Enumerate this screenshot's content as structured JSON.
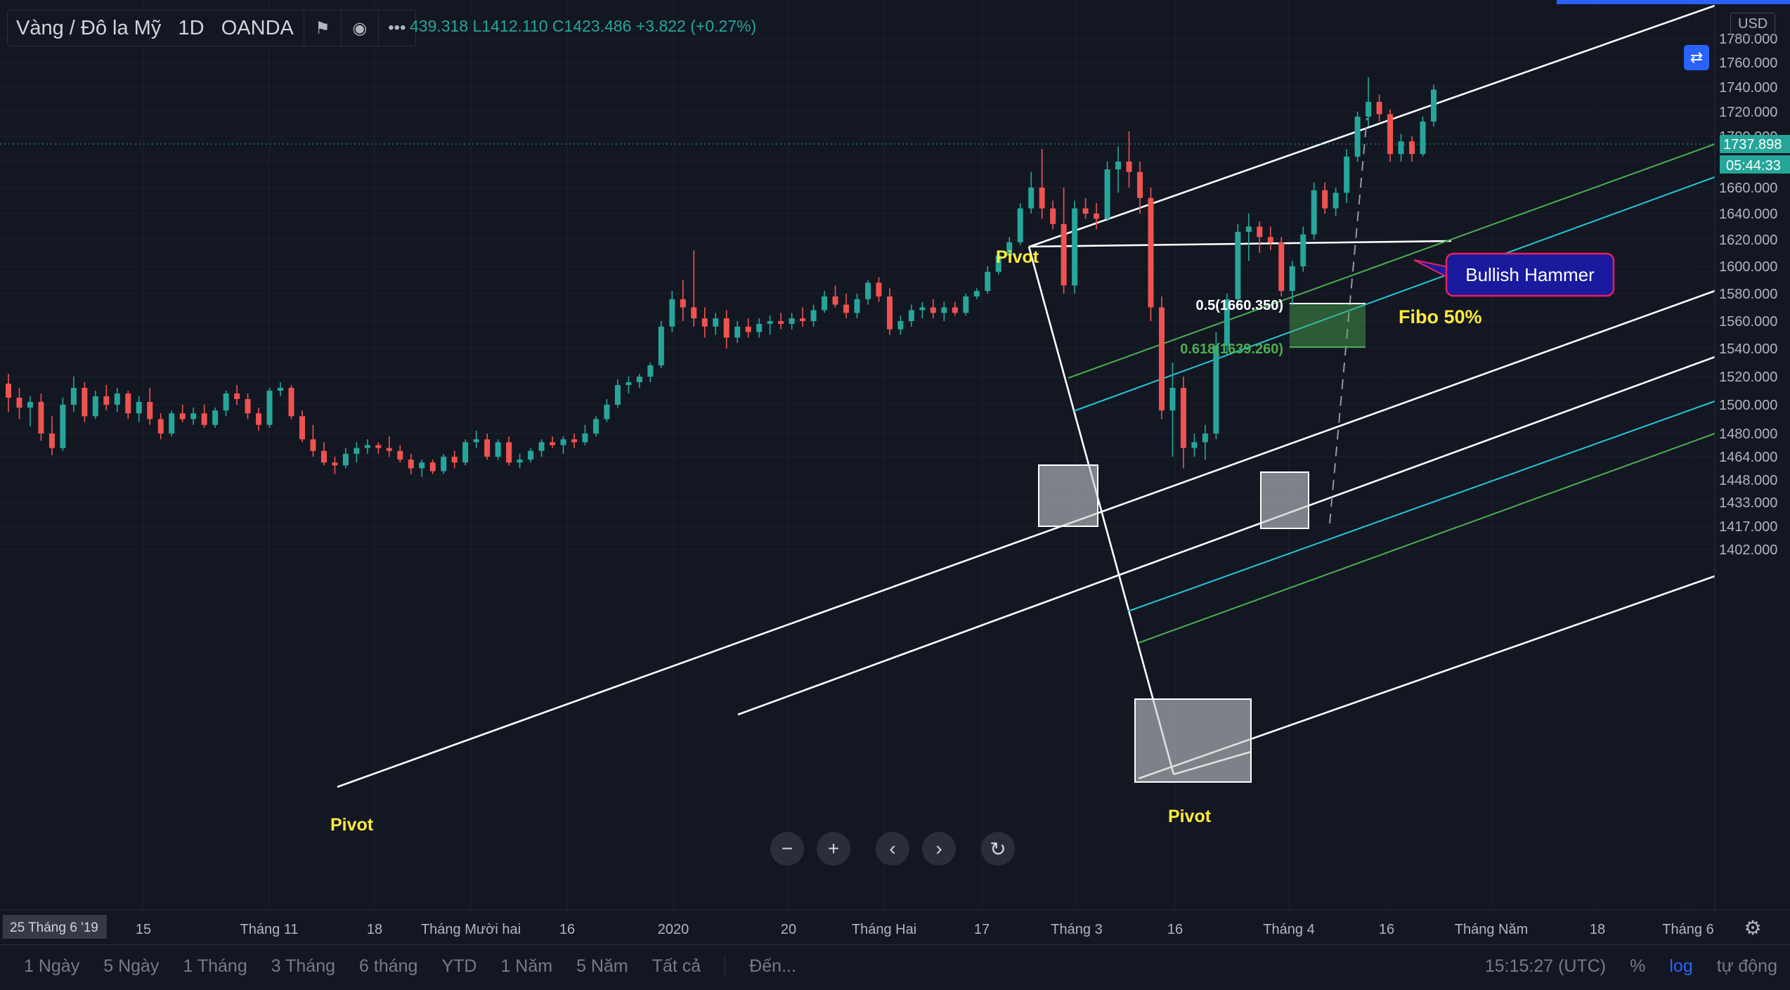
{
  "header": {
    "symbol": "Vàng / Đô la Mỹ",
    "interval": "1D",
    "broker": "OANDA",
    "ohlc_text": "439.318  L1412.110  C1423.486  +3.822 (+0.27%)"
  },
  "colors": {
    "bg": "#131722",
    "up": "#26a69a",
    "down": "#ef5350",
    "accent": "#2962ff",
    "channel": "#ffffff",
    "green_line": "#4caf50",
    "cyan_line": "#26c6da"
  },
  "price_axis": {
    "currency": "USD",
    "current_price": "1737.898",
    "countdown": "05:44:33",
    "labels": [
      "1780.000",
      "1760.000",
      "1740.000",
      "1720.000",
      "1700.000",
      "1680.000",
      "1660.000",
      "1640.000",
      "1620.000",
      "1600.000",
      "1580.000",
      "1560.000",
      "1540.000",
      "1520.000",
      "1500.000",
      "1480.000",
      "1464.000",
      "1448.000",
      "1433.000",
      "1417.000",
      "1402.000"
    ]
  },
  "time_axis": {
    "first_label": "25 Tháng 6 '19",
    "labels": [
      "15",
      "Tháng 11",
      "18",
      "Tháng Mười hai",
      "16",
      "2020",
      "20",
      "Tháng Hai",
      "17",
      "Tháng 3",
      "16",
      "Tháng 4",
      "16",
      "Tháng Năm",
      "18",
      "Tháng 6"
    ]
  },
  "annotations": {
    "pivot_label": "Pivot",
    "fib_05": "0.5(1660.350)",
    "fib_0618": "0.618(1639.260)",
    "hammer": "Bullish Hammer",
    "fibo_text": "Fibo 50%"
  },
  "bottom": {
    "ranges": [
      "1 Ngày",
      "5 Ngày",
      "1 Tháng",
      "3 Tháng",
      "6 tháng",
      "YTD",
      "1 Năm",
      "5 Năm",
      "Tất cả"
    ],
    "goto": "Đến...",
    "clock": "15:15:27 (UTC)",
    "percent": "%",
    "log": "log",
    "auto": "tự động"
  },
  "chart_data": {
    "type": "candlestick",
    "ylim": [
      1395,
      1795
    ],
    "candles_ohlc": [
      [
        1515,
        1522,
        1495,
        1505
      ],
      [
        1505,
        1512,
        1490,
        1498
      ],
      [
        1498,
        1506,
        1485,
        1502
      ],
      [
        1502,
        1508,
        1475,
        1480
      ],
      [
        1480,
        1492,
        1465,
        1470
      ],
      [
        1470,
        1505,
        1468,
        1500
      ],
      [
        1500,
        1520,
        1495,
        1512
      ],
      [
        1512,
        1516,
        1488,
        1492
      ],
      [
        1492,
        1510,
        1490,
        1506
      ],
      [
        1506,
        1514,
        1496,
        1500
      ],
      [
        1500,
        1512,
        1495,
        1508
      ],
      [
        1508,
        1510,
        1490,
        1494
      ],
      [
        1494,
        1506,
        1488,
        1502
      ],
      [
        1502,
        1512,
        1486,
        1490
      ],
      [
        1490,
        1494,
        1476,
        1480
      ],
      [
        1480,
        1496,
        1478,
        1494
      ],
      [
        1494,
        1500,
        1488,
        1490
      ],
      [
        1490,
        1498,
        1486,
        1494
      ],
      [
        1494,
        1500,
        1484,
        1486
      ],
      [
        1486,
        1498,
        1484,
        1496
      ],
      [
        1496,
        1510,
        1492,
        1508
      ],
      [
        1508,
        1514,
        1500,
        1504
      ],
      [
        1504,
        1508,
        1490,
        1494
      ],
      [
        1494,
        1498,
        1482,
        1486
      ],
      [
        1486,
        1512,
        1484,
        1510
      ],
      [
        1510,
        1516,
        1506,
        1512
      ],
      [
        1512,
        1514,
        1490,
        1492
      ],
      [
        1492,
        1496,
        1474,
        1476
      ],
      [
        1476,
        1486,
        1464,
        1468
      ],
      [
        1468,
        1474,
        1458,
        1460
      ],
      [
        1460,
        1464,
        1452,
        1458
      ],
      [
        1458,
        1470,
        1456,
        1466
      ],
      [
        1466,
        1474,
        1460,
        1470
      ],
      [
        1470,
        1476,
        1466,
        1472
      ],
      [
        1472,
        1474,
        1466,
        1470
      ],
      [
        1470,
        1478,
        1464,
        1468
      ],
      [
        1468,
        1472,
        1460,
        1462
      ],
      [
        1462,
        1466,
        1452,
        1456
      ],
      [
        1456,
        1462,
        1450,
        1460
      ],
      [
        1460,
        1462,
        1452,
        1454
      ],
      [
        1454,
        1466,
        1452,
        1464
      ],
      [
        1464,
        1468,
        1456,
        1460
      ],
      [
        1460,
        1476,
        1458,
        1474
      ],
      [
        1474,
        1482,
        1470,
        1476
      ],
      [
        1476,
        1480,
        1462,
        1464
      ],
      [
        1464,
        1476,
        1462,
        1474
      ],
      [
        1474,
        1478,
        1458,
        1460
      ],
      [
        1460,
        1466,
        1456,
        1462
      ],
      [
        1462,
        1470,
        1460,
        1468
      ],
      [
        1468,
        1476,
        1464,
        1474
      ],
      [
        1474,
        1478,
        1470,
        1472
      ],
      [
        1472,
        1478,
        1466,
        1476
      ],
      [
        1476,
        1480,
        1470,
        1474
      ],
      [
        1474,
        1486,
        1472,
        1480
      ],
      [
        1480,
        1492,
        1478,
        1490
      ],
      [
        1490,
        1504,
        1488,
        1500
      ],
      [
        1500,
        1518,
        1498,
        1514
      ],
      [
        1514,
        1520,
        1508,
        1516
      ],
      [
        1516,
        1522,
        1512,
        1520
      ],
      [
        1520,
        1530,
        1516,
        1528
      ],
      [
        1528,
        1560,
        1526,
        1556
      ],
      [
        1556,
        1582,
        1552,
        1576
      ],
      [
        1576,
        1590,
        1560,
        1570
      ],
      [
        1570,
        1612,
        1556,
        1562
      ],
      [
        1562,
        1570,
        1548,
        1556
      ],
      [
        1556,
        1566,
        1550,
        1562
      ],
      [
        1562,
        1568,
        1540,
        1548
      ],
      [
        1548,
        1560,
        1544,
        1556
      ],
      [
        1556,
        1562,
        1548,
        1552
      ],
      [
        1552,
        1562,
        1548,
        1558
      ],
      [
        1558,
        1564,
        1550,
        1560
      ],
      [
        1560,
        1566,
        1554,
        1558
      ],
      [
        1558,
        1566,
        1554,
        1562
      ],
      [
        1562,
        1570,
        1556,
        1560
      ],
      [
        1560,
        1572,
        1556,
        1568
      ],
      [
        1568,
        1582,
        1566,
        1578
      ],
      [
        1578,
        1586,
        1570,
        1572
      ],
      [
        1572,
        1580,
        1562,
        1566
      ],
      [
        1566,
        1580,
        1562,
        1576
      ],
      [
        1576,
        1590,
        1572,
        1588
      ],
      [
        1588,
        1592,
        1574,
        1578
      ],
      [
        1578,
        1584,
        1550,
        1554
      ],
      [
        1554,
        1564,
        1550,
        1560
      ],
      [
        1560,
        1572,
        1556,
        1568
      ],
      [
        1568,
        1574,
        1562,
        1570
      ],
      [
        1570,
        1576,
        1562,
        1566
      ],
      [
        1566,
        1574,
        1560,
        1570
      ],
      [
        1570,
        1574,
        1564,
        1566
      ],
      [
        1566,
        1580,
        1564,
        1578
      ],
      [
        1578,
        1584,
        1576,
        1582
      ],
      [
        1582,
        1600,
        1580,
        1596
      ],
      [
        1596,
        1612,
        1594,
        1608
      ],
      [
        1608,
        1622,
        1604,
        1618
      ],
      [
        1618,
        1648,
        1616,
        1644
      ],
      [
        1644,
        1672,
        1640,
        1660
      ],
      [
        1660,
        1690,
        1636,
        1644
      ],
      [
        1644,
        1650,
        1628,
        1632
      ],
      [
        1632,
        1660,
        1580,
        1586
      ],
      [
        1586,
        1650,
        1580,
        1644
      ],
      [
        1644,
        1652,
        1636,
        1640
      ],
      [
        1640,
        1648,
        1628,
        1636
      ],
      [
        1636,
        1680,
        1634,
        1674
      ],
      [
        1674,
        1692,
        1656,
        1680
      ],
      [
        1680,
        1704,
        1660,
        1672
      ],
      [
        1672,
        1680,
        1640,
        1652
      ],
      [
        1652,
        1660,
        1560,
        1570
      ],
      [
        1570,
        1578,
        1490,
        1496
      ],
      [
        1496,
        1530,
        1464,
        1512
      ],
      [
        1512,
        1520,
        1456,
        1470
      ],
      [
        1470,
        1480,
        1464,
        1474
      ],
      [
        1474,
        1486,
        1462,
        1480
      ],
      [
        1480,
        1552,
        1476,
        1542
      ],
      [
        1542,
        1580,
        1536,
        1576
      ],
      [
        1576,
        1632,
        1570,
        1626
      ],
      [
        1626,
        1640,
        1604,
        1630
      ],
      [
        1630,
        1634,
        1610,
        1622
      ],
      [
        1622,
        1630,
        1612,
        1618
      ],
      [
        1618,
        1622,
        1578,
        1582
      ],
      [
        1582,
        1604,
        1572,
        1600
      ],
      [
        1600,
        1630,
        1596,
        1624
      ],
      [
        1624,
        1664,
        1620,
        1658
      ],
      [
        1658,
        1664,
        1640,
        1644
      ],
      [
        1644,
        1660,
        1638,
        1656
      ],
      [
        1656,
        1690,
        1648,
        1684
      ],
      [
        1684,
        1720,
        1680,
        1716
      ],
      [
        1716,
        1748,
        1708,
        1728
      ],
      [
        1728,
        1734,
        1712,
        1718
      ],
      [
        1718,
        1722,
        1680,
        1686
      ],
      [
        1686,
        1702,
        1680,
        1696
      ],
      [
        1696,
        1700,
        1680,
        1686
      ],
      [
        1686,
        1716,
        1684,
        1712
      ],
      [
        1712,
        1742,
        1708,
        1738
      ]
    ]
  }
}
